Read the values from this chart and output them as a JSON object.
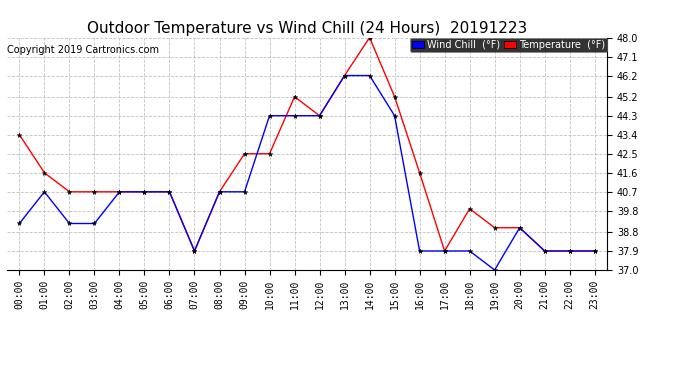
{
  "title": "Outdoor Temperature vs Wind Chill (24 Hours)  20191223",
  "copyright": "Copyright 2019 Cartronics.com",
  "legend_wind_chill": "Wind Chill  (°F)",
  "legend_temperature": "Temperature  (°F)",
  "x_labels": [
    "00:00",
    "01:00",
    "02:00",
    "03:00",
    "04:00",
    "05:00",
    "06:00",
    "07:00",
    "08:00",
    "09:00",
    "10:00",
    "11:00",
    "12:00",
    "13:00",
    "14:00",
    "15:00",
    "16:00",
    "17:00",
    "18:00",
    "19:00",
    "20:00",
    "21:00",
    "22:00",
    "23:00"
  ],
  "temperature_data": [
    43.4,
    41.6,
    40.7,
    40.7,
    40.7,
    40.7,
    40.7,
    37.9,
    40.7,
    42.5,
    42.5,
    45.2,
    44.3,
    46.2,
    48.0,
    45.2,
    41.6,
    37.9,
    39.9,
    39.0,
    39.0,
    37.9,
    37.9,
    37.9
  ],
  "wind_chill_data": [
    39.2,
    40.7,
    39.2,
    39.2,
    40.7,
    40.7,
    40.7,
    37.9,
    40.7,
    40.7,
    44.3,
    44.3,
    44.3,
    46.2,
    46.2,
    44.3,
    37.9,
    37.9,
    37.9,
    37.0,
    39.0,
    37.9,
    37.9,
    37.9
  ],
  "ylim_min": 37.0,
  "ylim_max": 48.0,
  "yticks": [
    37.0,
    37.9,
    38.8,
    39.8,
    40.7,
    41.6,
    42.5,
    43.4,
    44.3,
    45.2,
    46.2,
    47.1,
    48.0
  ],
  "temperature_color": "#ff0000",
  "wind_chill_color": "#0000ff",
  "background_color": "#ffffff",
  "plot_bg_color": "#ffffff",
  "grid_color": "#bbbbbb",
  "title_fontsize": 11,
  "copyright_fontsize": 7,
  "tick_fontsize": 7
}
